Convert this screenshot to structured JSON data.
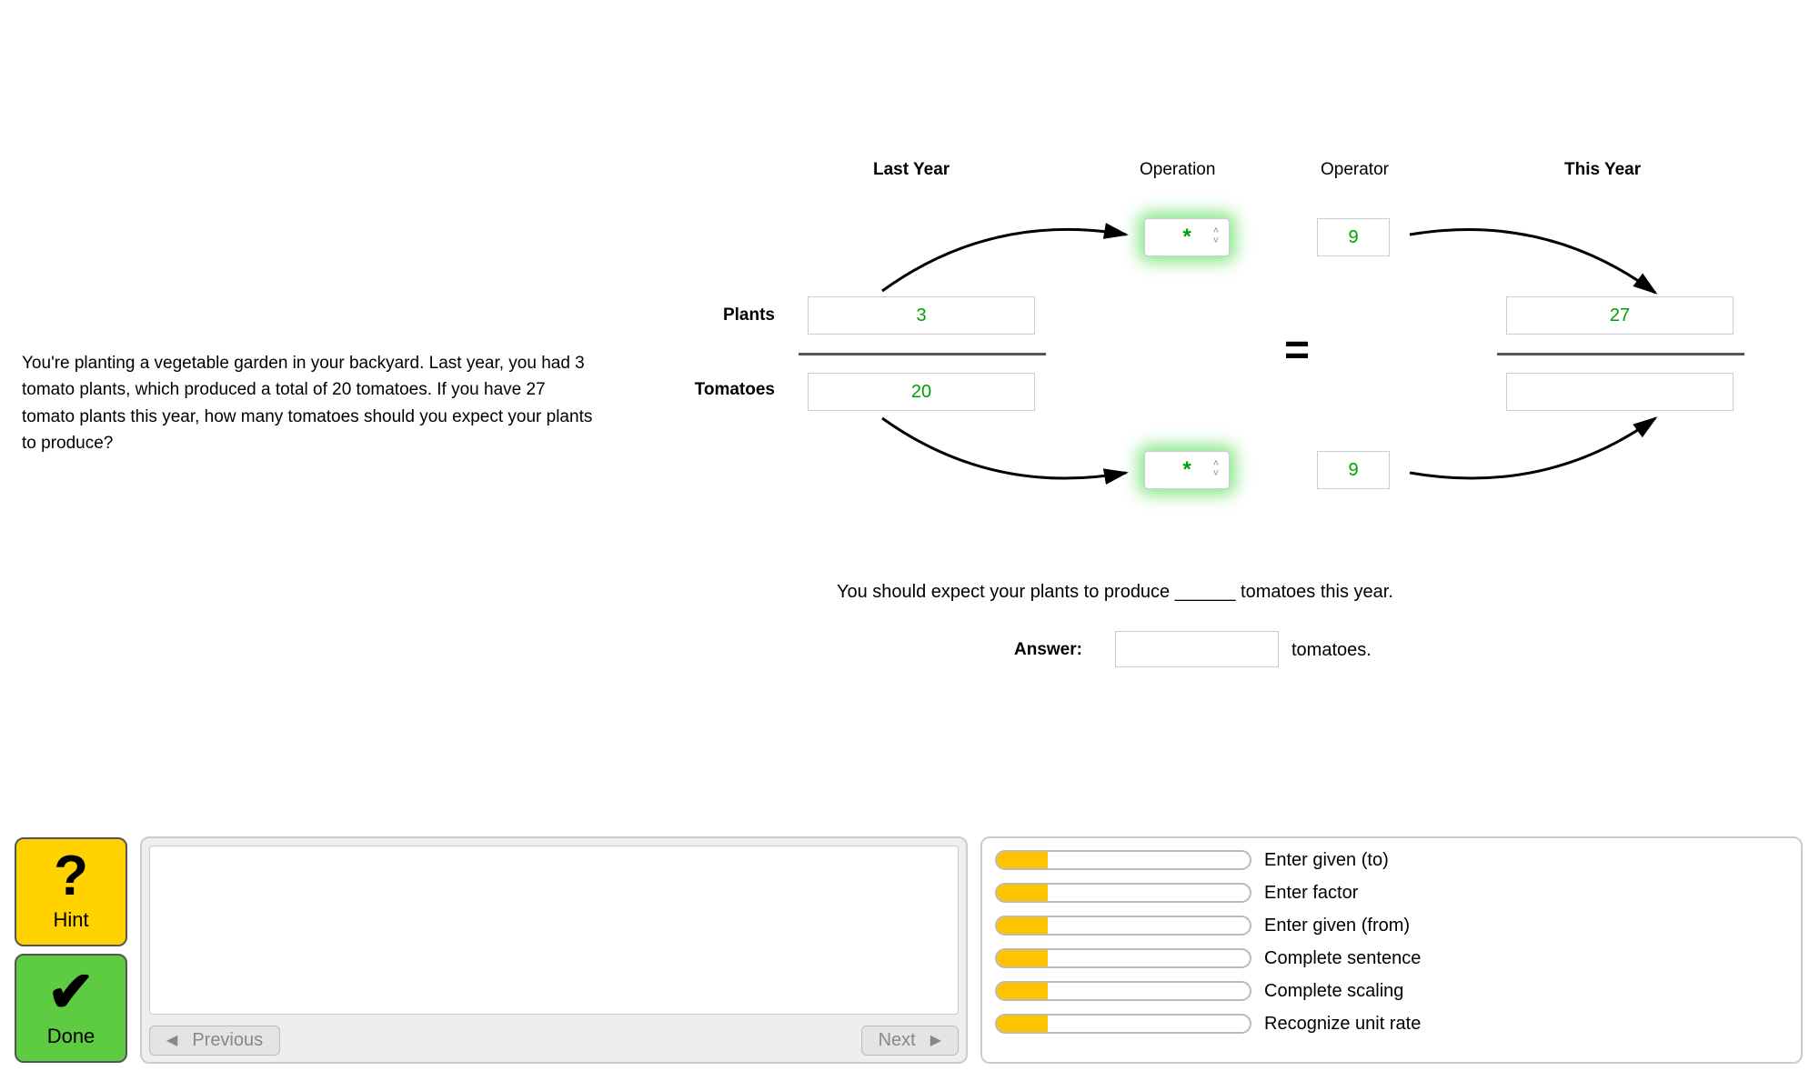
{
  "problem_text": "You're planting a vegetable garden in your backyard. Last year, you had 3 tomato plants, which produced a total of 20 tomatoes. If you have 27 tomato plants this year, how many tomatoes should you expect your plants to produce?",
  "headers": {
    "last_year": "Last Year",
    "operation": "Operation",
    "operator": "Operator",
    "this_year": "This Year"
  },
  "rows": {
    "plants": "Plants",
    "tomatoes": "Tomatoes"
  },
  "values": {
    "last_year_plants": "3",
    "last_year_tomatoes": "20",
    "operation_top": "*",
    "operation_bottom": "*",
    "operator_top": "9",
    "operator_bottom": "9",
    "this_year_plants": "27",
    "this_year_tomatoes": ""
  },
  "equals": "=",
  "sentence": "You should expect your plants to produce ______ tomatoes this year.",
  "answer": {
    "label": "Answer:",
    "unit": "tomatoes."
  },
  "buttons": {
    "hint": "Hint",
    "done": "Done",
    "previous": "Previous",
    "next": "Next"
  },
  "skills": [
    {
      "label": "Enter given (to)",
      "progress": 20
    },
    {
      "label": "Enter factor",
      "progress": 20
    },
    {
      "label": "Enter given (from)",
      "progress": 20
    },
    {
      "label": "Complete sentence",
      "progress": 20
    },
    {
      "label": "Complete scaling",
      "progress": 20
    },
    {
      "label": "Recognize unit rate",
      "progress": 20
    }
  ],
  "colors": {
    "bar_fill": "#ffc400",
    "value_green": "#00a000",
    "hint_bg": "#ffd200",
    "done_bg": "#5ecc42"
  }
}
